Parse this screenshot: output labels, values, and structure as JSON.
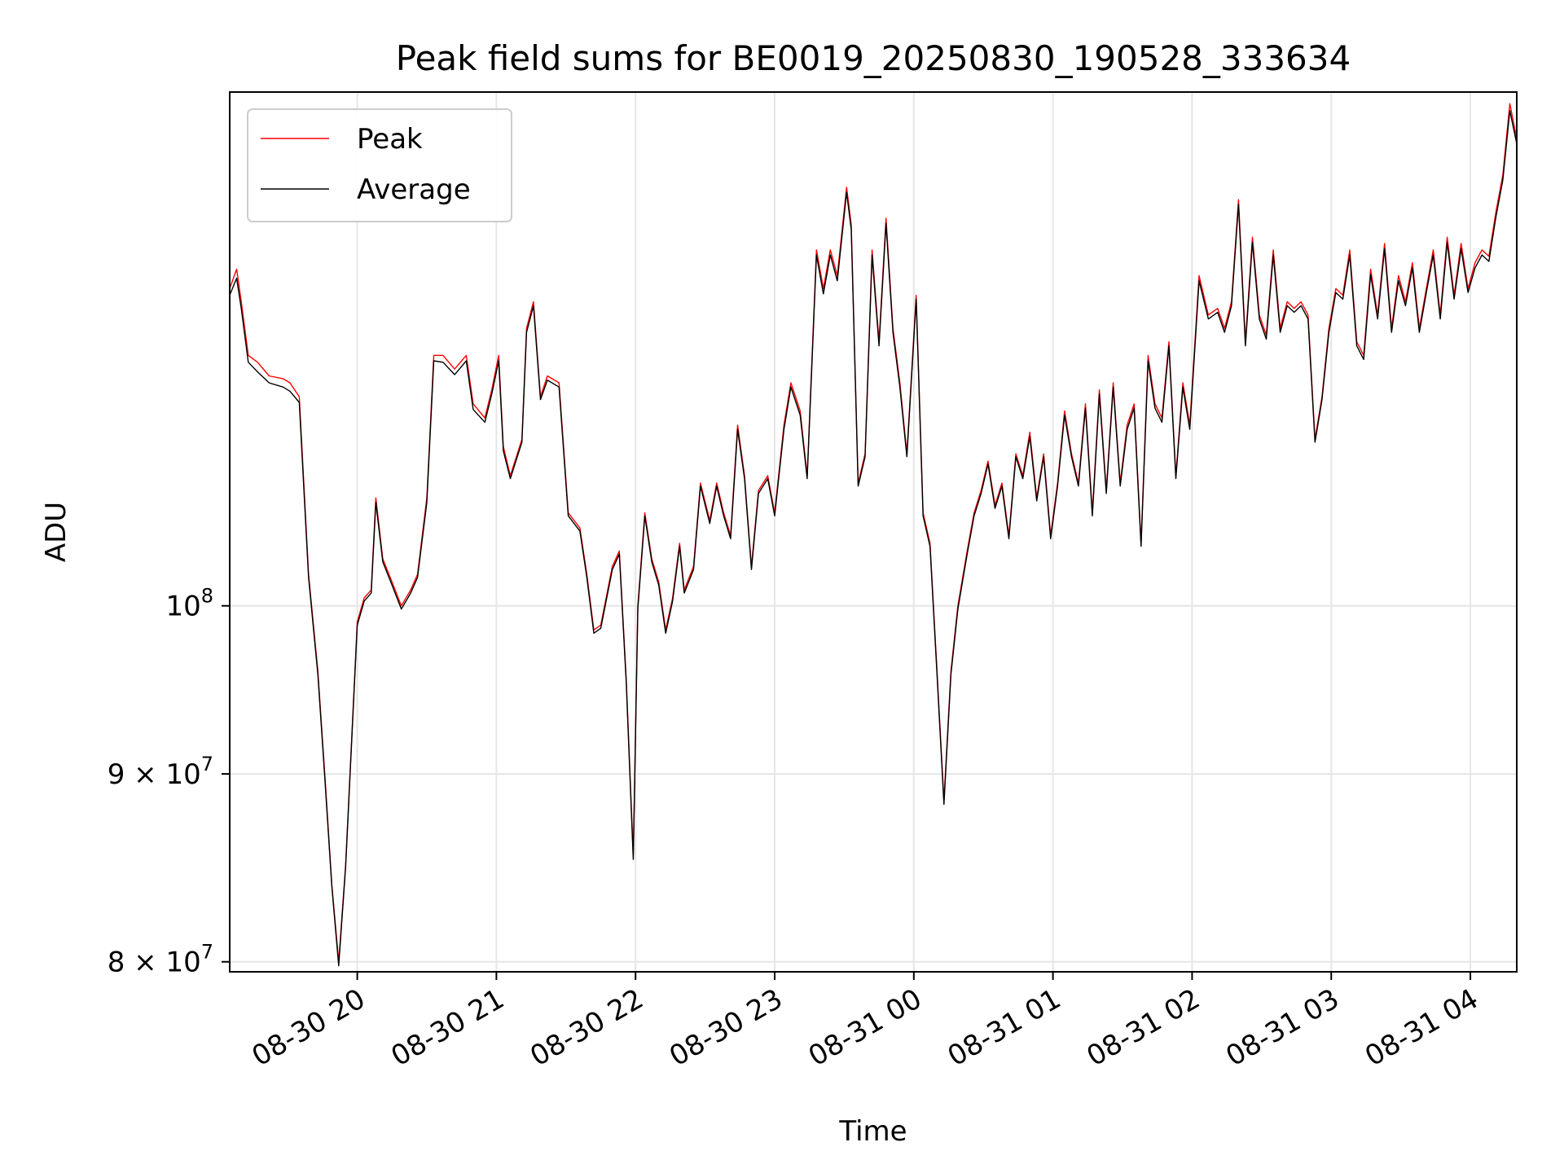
{
  "chart_data": {
    "type": "line",
    "title": "Peak field sums for BE0019_20250830_190528_333634",
    "xlabel": "Time",
    "ylabel": "ADU",
    "x_range": [
      "2025-08-30 19:05",
      "2025-08-31 04:20"
    ],
    "y_scale": "log",
    "ylim": [
      79500000,
      138000000
    ],
    "grid": true,
    "legend_position": "top-left",
    "x_ticks": [
      "08-30 20",
      "08-30 21",
      "08-30 22",
      "08-30 23",
      "08-31 00",
      "08-31 01",
      "08-31 02",
      "08-31 03",
      "08-31 04"
    ],
    "x_tick_times": [
      "2025-08-30 20:00",
      "2025-08-30 21:00",
      "2025-08-30 22:00",
      "2025-08-30 23:00",
      "2025-08-31 00:00",
      "2025-08-31 01:00",
      "2025-08-31 02:00",
      "2025-08-31 03:00",
      "2025-08-31 04:00"
    ],
    "y_ticks": [
      {
        "value": 100000000,
        "mantissa": "",
        "base": "10",
        "exp": "8"
      },
      {
        "value": 90000000,
        "mantissa": "9 × ",
        "base": "10",
        "exp": "7"
      },
      {
        "value": 80000000,
        "mantissa": "8 × ",
        "base": "10",
        "exp": "7"
      }
    ],
    "series": [
      {
        "name": "Peak",
        "color": "#ff0000",
        "x": [
          "2025-08-30 19:05",
          "2025-08-30 19:08",
          "2025-08-30 19:10",
          "2025-08-30 19:13",
          "2025-08-30 19:17",
          "2025-08-30 19:22",
          "2025-08-30 19:28",
          "2025-08-30 19:31",
          "2025-08-30 19:35",
          "2025-08-30 19:39",
          "2025-08-30 19:43",
          "2025-08-30 19:46",
          "2025-08-30 19:49",
          "2025-08-30 19:52",
          "2025-08-30 19:55",
          "2025-08-30 20:00",
          "2025-08-30 20:03",
          "2025-08-30 20:06",
          "2025-08-30 20:08",
          "2025-08-30 20:11",
          "2025-08-30 20:15",
          "2025-08-30 20:19",
          "2025-08-30 20:23",
          "2025-08-30 20:26",
          "2025-08-30 20:30",
          "2025-08-30 20:33",
          "2025-08-30 20:37",
          "2025-08-30 20:42",
          "2025-08-30 20:47",
          "2025-08-30 20:50",
          "2025-08-30 20:55",
          "2025-08-30 20:58",
          "2025-08-30 21:01",
          "2025-08-30 21:03",
          "2025-08-30 21:06",
          "2025-08-30 21:11",
          "2025-08-30 21:13",
          "2025-08-30 21:16",
          "2025-08-30 21:19",
          "2025-08-30 21:22",
          "2025-08-30 21:27",
          "2025-08-30 21:31",
          "2025-08-30 21:36",
          "2025-08-30 21:39",
          "2025-08-30 21:42",
          "2025-08-30 21:45",
          "2025-08-30 21:50",
          "2025-08-30 21:53",
          "2025-08-30 21:56",
          "2025-08-30 21:59",
          "2025-08-30 22:01",
          "2025-08-30 22:04",
          "2025-08-30 22:07",
          "2025-08-30 22:10",
          "2025-08-30 22:13",
          "2025-08-30 22:16",
          "2025-08-30 22:19",
          "2025-08-30 22:21",
          "2025-08-30 22:25",
          "2025-08-30 22:28",
          "2025-08-30 22:32",
          "2025-08-30 22:35",
          "2025-08-30 22:38",
          "2025-08-30 22:41",
          "2025-08-30 22:44",
          "2025-08-30 22:47",
          "2025-08-30 22:50",
          "2025-08-30 22:53",
          "2025-08-30 22:57",
          "2025-08-30 23:00",
          "2025-08-30 23:04",
          "2025-08-30 23:07",
          "2025-08-30 23:11",
          "2025-08-30 23:14",
          "2025-08-30 23:18",
          "2025-08-30 23:21",
          "2025-08-30 23:24",
          "2025-08-30 23:27",
          "2025-08-30 23:31",
          "2025-08-30 23:33",
          "2025-08-30 23:36",
          "2025-08-30 23:39",
          "2025-08-30 23:42",
          "2025-08-30 23:45",
          "2025-08-30 23:48",
          "2025-08-30 23:51",
          "2025-08-30 23:54",
          "2025-08-30 23:57",
          "2025-08-31 00:01",
          "2025-08-31 00:04",
          "2025-08-31 00:07",
          "2025-08-31 00:10",
          "2025-08-31 00:13",
          "2025-08-31 00:16",
          "2025-08-31 00:19",
          "2025-08-31 00:23",
          "2025-08-31 00:26",
          "2025-08-31 00:29",
          "2025-08-31 00:32",
          "2025-08-31 00:35",
          "2025-08-31 00:38",
          "2025-08-31 00:41",
          "2025-08-31 00:44",
          "2025-08-31 00:47",
          "2025-08-31 00:50",
          "2025-08-31 00:53",
          "2025-08-31 00:56",
          "2025-08-31 00:59",
          "2025-08-31 01:02",
          "2025-08-31 01:05",
          "2025-08-31 01:08",
          "2025-08-31 01:11",
          "2025-08-31 01:14",
          "2025-08-31 01:17",
          "2025-08-31 01:20",
          "2025-08-31 01:23",
          "2025-08-31 01:26",
          "2025-08-31 01:29",
          "2025-08-31 01:32",
          "2025-08-31 01:35",
          "2025-08-31 01:38",
          "2025-08-31 01:41",
          "2025-08-31 01:44",
          "2025-08-31 01:47",
          "2025-08-31 01:50",
          "2025-08-31 01:53",
          "2025-08-31 01:56",
          "2025-08-31 01:59",
          "2025-08-31 02:03",
          "2025-08-31 02:07",
          "2025-08-31 02:11",
          "2025-08-31 02:14",
          "2025-08-31 02:17",
          "2025-08-31 02:20",
          "2025-08-31 02:23",
          "2025-08-31 02:26",
          "2025-08-31 02:29",
          "2025-08-31 02:32",
          "2025-08-31 02:35",
          "2025-08-31 02:38",
          "2025-08-31 02:41",
          "2025-08-31 02:44",
          "2025-08-31 02:47",
          "2025-08-31 02:50",
          "2025-08-31 02:53",
          "2025-08-31 02:56",
          "2025-08-31 02:59",
          "2025-08-31 03:02",
          "2025-08-31 03:05",
          "2025-08-31 03:08",
          "2025-08-31 03:11",
          "2025-08-31 03:14",
          "2025-08-31 03:17",
          "2025-08-31 03:20",
          "2025-08-31 03:23",
          "2025-08-31 03:26",
          "2025-08-31 03:29",
          "2025-08-31 03:32",
          "2025-08-31 03:35",
          "2025-08-31 03:38",
          "2025-08-31 03:41",
          "2025-08-31 03:44",
          "2025-08-31 03:47",
          "2025-08-31 03:50",
          "2025-08-31 03:53",
          "2025-08-31 03:56",
          "2025-08-31 03:59",
          "2025-08-31 04:02",
          "2025-08-31 04:05",
          "2025-08-31 04:08",
          "2025-08-31 04:11",
          "2025-08-31 04:14",
          "2025-08-31 04:17",
          "2025-08-31 04:20"
        ],
        "y": [
          122000000,
          123500000,
          121000000,
          117000000,
          116500000,
          115500000,
          115300000,
          115000000,
          114000000,
          102000000,
          96000000,
          90000000,
          84000000,
          80000000,
          85000000,
          99000000,
          100500000,
          101000000,
          107000000,
          103000000,
          101500000,
          100000000,
          101000000,
          102000000,
          107000000,
          117000000,
          117000000,
          116000000,
          117000000,
          113500000,
          112500000,
          114500000,
          117000000,
          110500000,
          108500000,
          111000000,
          119000000,
          121000000,
          114000000,
          115500000,
          115000000,
          106000000,
          105000000,
          102000000,
          98500000,
          98800000,
          102500000,
          103500000,
          95500000,
          85500000,
          100000000,
          106000000,
          103000000,
          101500000,
          98500000,
          100500000,
          104000000,
          101000000,
          102500000,
          108000000,
          105500000,
          108000000,
          106000000,
          104500000,
          112000000,
          108500000,
          102500000,
          107500000,
          108500000,
          106000000,
          112000000,
          115000000,
          113000000,
          108500000,
          125000000,
          122000000,
          125000000,
          123000000,
          130000000,
          127000000,
          108000000,
          110000000,
          125000000,
          118000000,
          127500000,
          119000000,
          115000000,
          110000000,
          121500000,
          106000000,
          104000000,
          96000000,
          88500000,
          96000000,
          100000000,
          103500000,
          106000000,
          107500000,
          109500000,
          106500000,
          108000000,
          104500000,
          110000000,
          108500000,
          111500000,
          107000000,
          110000000,
          104500000,
          108000000,
          113000000,
          110000000,
          108000000,
          113500000,
          106000000,
          114500000,
          107500000,
          115000000,
          108000000,
          112000000,
          113500000,
          104000000,
          117000000,
          113500000,
          112500000,
          118000000,
          108500000,
          115000000,
          112000000,
          123000000,
          120000000,
          120500000,
          119000000,
          121000000,
          129000000,
          118000000,
          126000000,
          120000000,
          118500000,
          125000000,
          119000000,
          121000000,
          120500000,
          121000000,
          120000000,
          111000000,
          114000000,
          119000000,
          122000000,
          121500000,
          125000000,
          118000000,
          117000000,
          123500000,
          120000000,
          125500000,
          119000000,
          123000000,
          121000000,
          124000000,
          119000000,
          122000000,
          125000000,
          120000000,
          126000000,
          121500000,
          125500000,
          122000000,
          124000000,
          125000000,
          124500000,
          128000000,
          131000000,
          137000000,
          134000000
        ]
      },
      {
        "name": "Average",
        "color": "#000000",
        "x": [
          "2025-08-30 19:05",
          "2025-08-30 19:08",
          "2025-08-30 19:10",
          "2025-08-30 19:13",
          "2025-08-30 19:17",
          "2025-08-30 19:22",
          "2025-08-30 19:28",
          "2025-08-30 19:31",
          "2025-08-30 19:35",
          "2025-08-30 19:39",
          "2025-08-30 19:43",
          "2025-08-30 19:46",
          "2025-08-30 19:49",
          "2025-08-30 19:52",
          "2025-08-30 19:55",
          "2025-08-30 20:00",
          "2025-08-30 20:03",
          "2025-08-30 20:06",
          "2025-08-30 20:08",
          "2025-08-30 20:11",
          "2025-08-30 20:15",
          "2025-08-30 20:19",
          "2025-08-30 20:23",
          "2025-08-30 20:26",
          "2025-08-30 20:30",
          "2025-08-30 20:33",
          "2025-08-30 20:37",
          "2025-08-30 20:42",
          "2025-08-30 20:47",
          "2025-08-30 20:50",
          "2025-08-30 20:55",
          "2025-08-30 20:58",
          "2025-08-30 21:01",
          "2025-08-30 21:03",
          "2025-08-30 21:06",
          "2025-08-30 21:11",
          "2025-08-30 21:13",
          "2025-08-30 21:16",
          "2025-08-30 21:19",
          "2025-08-30 21:22",
          "2025-08-30 21:27",
          "2025-08-30 21:31",
          "2025-08-30 21:36",
          "2025-08-30 21:39",
          "2025-08-30 21:42",
          "2025-08-30 21:45",
          "2025-08-30 21:50",
          "2025-08-30 21:53",
          "2025-08-30 21:56",
          "2025-08-30 21:59",
          "2025-08-30 22:01",
          "2025-08-30 22:04",
          "2025-08-30 22:07",
          "2025-08-30 22:10",
          "2025-08-30 22:13",
          "2025-08-30 22:16",
          "2025-08-30 22:19",
          "2025-08-30 22:21",
          "2025-08-30 22:25",
          "2025-08-30 22:28",
          "2025-08-30 22:32",
          "2025-08-30 22:35",
          "2025-08-30 22:38",
          "2025-08-30 22:41",
          "2025-08-30 22:44",
          "2025-08-30 22:47",
          "2025-08-30 22:50",
          "2025-08-30 22:53",
          "2025-08-30 22:57",
          "2025-08-30 23:00",
          "2025-08-30 23:04",
          "2025-08-30 23:07",
          "2025-08-30 23:11",
          "2025-08-30 23:14",
          "2025-08-30 23:18",
          "2025-08-30 23:21",
          "2025-08-30 23:24",
          "2025-08-30 23:27",
          "2025-08-30 23:31",
          "2025-08-30 23:33",
          "2025-08-30 23:36",
          "2025-08-30 23:39",
          "2025-08-30 23:42",
          "2025-08-30 23:45",
          "2025-08-30 23:48",
          "2025-08-30 23:51",
          "2025-08-30 23:54",
          "2025-08-30 23:57",
          "2025-08-31 00:01",
          "2025-08-31 00:04",
          "2025-08-31 00:07",
          "2025-08-31 00:10",
          "2025-08-31 00:13",
          "2025-08-31 00:16",
          "2025-08-31 00:19",
          "2025-08-31 00:23",
          "2025-08-31 00:26",
          "2025-08-31 00:29",
          "2025-08-31 00:32",
          "2025-08-31 00:35",
          "2025-08-31 00:38",
          "2025-08-31 00:41",
          "2025-08-31 00:44",
          "2025-08-31 00:47",
          "2025-08-31 00:50",
          "2025-08-31 00:53",
          "2025-08-31 00:56",
          "2025-08-31 00:59",
          "2025-08-31 01:02",
          "2025-08-31 01:05",
          "2025-08-31 01:08",
          "2025-08-31 01:11",
          "2025-08-31 01:14",
          "2025-08-31 01:17",
          "2025-08-31 01:20",
          "2025-08-31 01:23",
          "2025-08-31 01:26",
          "2025-08-31 01:29",
          "2025-08-31 01:32",
          "2025-08-31 01:35",
          "2025-08-31 01:38",
          "2025-08-31 01:41",
          "2025-08-31 01:44",
          "2025-08-31 01:47",
          "2025-08-31 01:50",
          "2025-08-31 01:53",
          "2025-08-31 01:56",
          "2025-08-31 01:59",
          "2025-08-31 02:03",
          "2025-08-31 02:07",
          "2025-08-31 02:11",
          "2025-08-31 02:14",
          "2025-08-31 02:17",
          "2025-08-31 02:20",
          "2025-08-31 02:23",
          "2025-08-31 02:26",
          "2025-08-31 02:29",
          "2025-08-31 02:32",
          "2025-08-31 02:35",
          "2025-08-31 02:38",
          "2025-08-31 02:41",
          "2025-08-31 02:44",
          "2025-08-31 02:47",
          "2025-08-31 02:50",
          "2025-08-31 02:53",
          "2025-08-31 02:56",
          "2025-08-31 02:59",
          "2025-08-31 03:02",
          "2025-08-31 03:05",
          "2025-08-31 03:08",
          "2025-08-31 03:11",
          "2025-08-31 03:14",
          "2025-08-31 03:17",
          "2025-08-31 03:20",
          "2025-08-31 03:23",
          "2025-08-31 03:26",
          "2025-08-31 03:29",
          "2025-08-31 03:32",
          "2025-08-31 03:35",
          "2025-08-31 03:38",
          "2025-08-31 03:41",
          "2025-08-31 03:44",
          "2025-08-31 03:47",
          "2025-08-31 03:50",
          "2025-08-31 03:53",
          "2025-08-31 03:56",
          "2025-08-31 03:59",
          "2025-08-31 04:02",
          "2025-08-31 04:05",
          "2025-08-31 04:08",
          "2025-08-31 04:11",
          "2025-08-31 04:14",
          "2025-08-31 04:17",
          "2025-08-31 04:20"
        ],
        "y": [
          121500000,
          122800000,
          120500000,
          116500000,
          115800000,
          115000000,
          114700000,
          114400000,
          113600000,
          101800000,
          95800000,
          89800000,
          83900000,
          79800000,
          84900000,
          98800000,
          100300000,
          100800000,
          106700000,
          102800000,
          101300000,
          99800000,
          100800000,
          101800000,
          106700000,
          116600000,
          116500000,
          115600000,
          116600000,
          113100000,
          112200000,
          114200000,
          116600000,
          110200000,
          108300000,
          110800000,
          118700000,
          120700000,
          113800000,
          115200000,
          114700000,
          105800000,
          104800000,
          101800000,
          98300000,
          98600000,
          102300000,
          103300000,
          95300000,
          85300000,
          99800000,
          105800000,
          102800000,
          101300000,
          98300000,
          100300000,
          103800000,
          100800000,
          102300000,
          107800000,
          105300000,
          107800000,
          105800000,
          104300000,
          111700000,
          108300000,
          102300000,
          107300000,
          108300000,
          105800000,
          111700000,
          114700000,
          112700000,
          108300000,
          124600000,
          121600000,
          124600000,
          122600000,
          129600000,
          126600000,
          107800000,
          109800000,
          124600000,
          117700000,
          127100000,
          118700000,
          114700000,
          109800000,
          121200000,
          105800000,
          103800000,
          95800000,
          88300000,
          95800000,
          99800000,
          103300000,
          105800000,
          107300000,
          109300000,
          106300000,
          107800000,
          104300000,
          109800000,
          108300000,
          111200000,
          106800000,
          109800000,
          104300000,
          107800000,
          112700000,
          109800000,
          107800000,
          113200000,
          105800000,
          114200000,
          107300000,
          114700000,
          107800000,
          111700000,
          113200000,
          103800000,
          116600000,
          113200000,
          112200000,
          117700000,
          108300000,
          114700000,
          111700000,
          122600000,
          119700000,
          120200000,
          118700000,
          120700000,
          128600000,
          117700000,
          125600000,
          119700000,
          118200000,
          124600000,
          118700000,
          120700000,
          120200000,
          120700000,
          119700000,
          110800000,
          113800000,
          118700000,
          121700000,
          121200000,
          124600000,
          117700000,
          116700000,
          123100000,
          119700000,
          125100000,
          118700000,
          122600000,
          120700000,
          123600000,
          118700000,
          121700000,
          124600000,
          119700000,
          125600000,
          121200000,
          125100000,
          121700000,
          123600000,
          124600000,
          124100000,
          127600000,
          130600000,
          136400000,
          133600000
        ]
      }
    ]
  }
}
